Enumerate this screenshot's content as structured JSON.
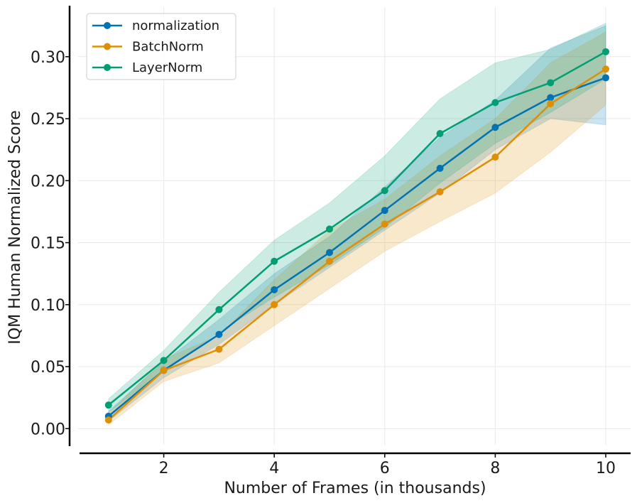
{
  "chart_data": {
    "type": "line",
    "xlabel": "Number of Frames (in thousands)",
    "ylabel": "IQM Human Normalized Score",
    "xlim": [
      0.45,
      10.45
    ],
    "ylim": [
      -0.013,
      0.34
    ],
    "xticks": [
      2,
      4,
      6,
      8,
      10
    ],
    "yticks": [
      0.0,
      0.05,
      0.1,
      0.15,
      0.2,
      0.25,
      0.3
    ],
    "ytick_labels": [
      "0.00",
      "0.05",
      "0.10",
      "0.15",
      "0.20",
      "0.25",
      "0.30"
    ],
    "grid": true,
    "legend_position": "top-left",
    "x": [
      1,
      2,
      3,
      4,
      5,
      6,
      7,
      8,
      9,
      10
    ],
    "series": [
      {
        "name": "normalization",
        "color": "#0173b2",
        "values": [
          0.01,
          0.047,
          0.076,
          0.112,
          0.142,
          0.176,
          0.21,
          0.243,
          0.267,
          0.283
        ],
        "lower": [
          0.006,
          0.041,
          0.068,
          0.1,
          0.13,
          0.16,
          0.19,
          0.225,
          0.25,
          0.245
        ],
        "upper": [
          0.014,
          0.054,
          0.088,
          0.125,
          0.155,
          0.195,
          0.235,
          0.265,
          0.307,
          0.325
        ]
      },
      {
        "name": "BatchNorm",
        "color": "#de8f05",
        "values": [
          0.007,
          0.047,
          0.064,
          0.1,
          0.135,
          0.165,
          0.191,
          0.219,
          0.262,
          0.29
        ],
        "lower": [
          0.003,
          0.038,
          0.053,
          0.083,
          0.113,
          0.143,
          0.167,
          0.19,
          0.223,
          0.261
        ],
        "upper": [
          0.012,
          0.056,
          0.075,
          0.12,
          0.16,
          0.185,
          0.22,
          0.25,
          0.295,
          0.32
        ]
      },
      {
        "name": "LayerNorm",
        "color": "#029e73",
        "values": [
          0.019,
          0.055,
          0.096,
          0.135,
          0.161,
          0.192,
          0.238,
          0.263,
          0.279,
          0.304
        ],
        "lower": [
          0.013,
          0.047,
          0.078,
          0.106,
          0.132,
          0.162,
          0.198,
          0.23,
          0.255,
          0.282
        ],
        "upper": [
          0.024,
          0.063,
          0.11,
          0.152,
          0.182,
          0.22,
          0.266,
          0.295,
          0.306,
          0.327
        ]
      }
    ]
  }
}
